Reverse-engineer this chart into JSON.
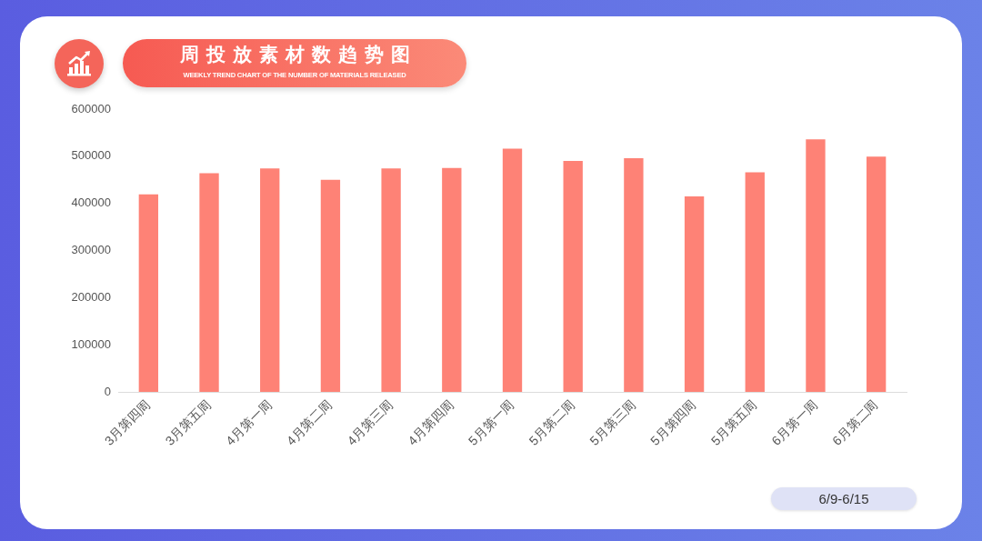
{
  "chart_data": {
    "type": "bar",
    "title": "周投放素材数趋势图",
    "subtitle": "WEEKLY TREND CHART OF THE NUMBER OF MATERIALS RELEASED",
    "categories": [
      "3月第四周",
      "3月第五周",
      "4月第一周",
      "4月第二周",
      "4月第三周",
      "4月第四周",
      "5月第一周",
      "5月第二周",
      "5月第三周",
      "5月第四周",
      "5月第五周",
      "6月第一周",
      "6月第二周"
    ],
    "values": [
      419000,
      464000,
      474000,
      450000,
      474000,
      475000,
      516000,
      490000,
      496000,
      415000,
      466000,
      536000,
      499000
    ],
    "color": "#fe8276",
    "ylim": [
      0,
      600000
    ],
    "yticks": [
      0,
      100000,
      200000,
      300000,
      400000,
      500000,
      600000
    ],
    "annotations": [
      "6/9-6/15"
    ]
  }
}
